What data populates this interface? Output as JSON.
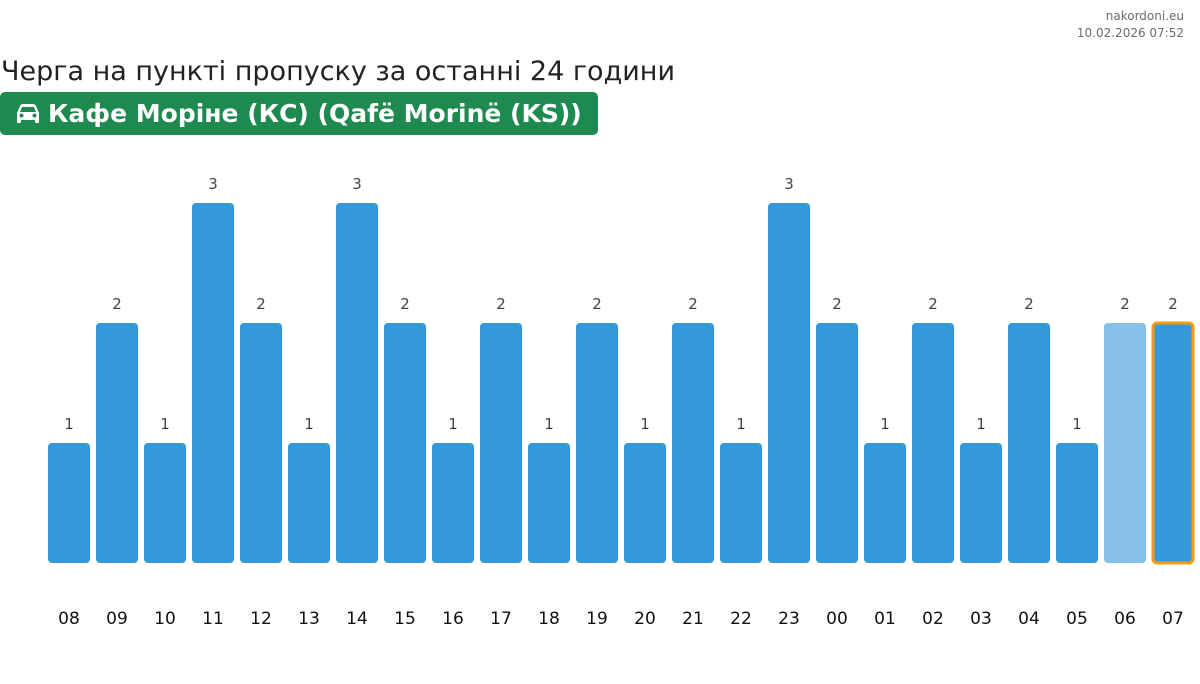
{
  "header": {
    "site": "nakordoni.eu",
    "timestamp": "10.02.2026 07:52",
    "title": "Черга на пункті пропуску за останні 24 години",
    "checkpoint": "Кафе Моріне (КС) (Qafë Morinë (KS))",
    "checkpoint_icon": "car-icon"
  },
  "chart_data": {
    "type": "bar",
    "title": "Черга на пункті пропуску за останні 24 години",
    "xlabel": "",
    "ylabel": "",
    "categories": [
      "08",
      "09",
      "10",
      "11",
      "12",
      "13",
      "14",
      "15",
      "16",
      "17",
      "18",
      "19",
      "20",
      "21",
      "22",
      "23",
      "00",
      "01",
      "02",
      "03",
      "04",
      "05",
      "06",
      "07"
    ],
    "values": [
      1,
      2,
      1,
      3,
      2,
      1,
      3,
      2,
      1,
      2,
      1,
      2,
      1,
      2,
      1,
      3,
      2,
      1,
      2,
      1,
      2,
      1,
      2,
      2
    ],
    "ylim": [
      0,
      3
    ],
    "grid": false,
    "legend": "none",
    "data_labels": true,
    "colors": {
      "bar": "#3498db",
      "bar_previous_hour": "#85c1e9",
      "bar_current_hour": "#3498db",
      "current_hour_outline": "#f39c12",
      "label": "#444444",
      "tick": "#111111"
    },
    "highlight": {
      "previous_hour": "06",
      "current_hour": "07"
    }
  }
}
